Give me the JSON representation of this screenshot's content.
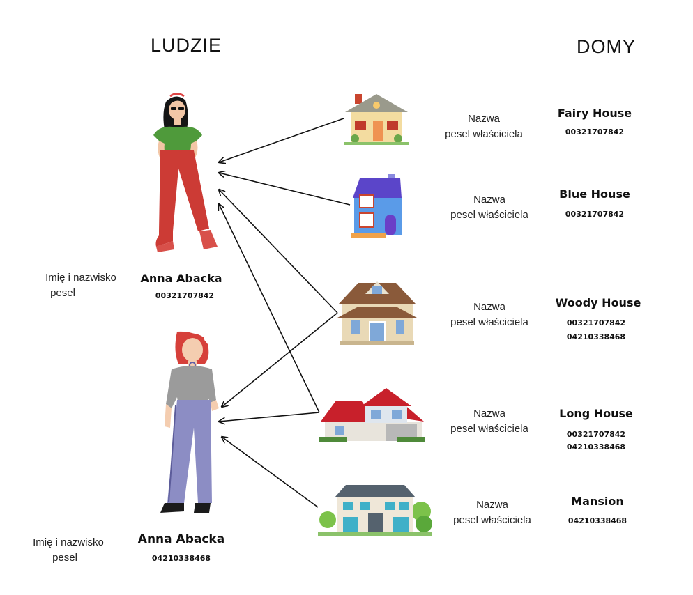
{
  "headings": {
    "people": "LUDZIE",
    "houses": "DOMY"
  },
  "people": [
    {
      "field_label_name": "Imię i nazwisko",
      "field_label_pesel": "pesel",
      "name": "Anna Abacka",
      "pesel": "00321707842"
    },
    {
      "field_label_name": "Imię i nazwisko",
      "field_label_pesel": "pesel",
      "name": "Anna Abacka",
      "pesel": "04210338468"
    }
  ],
  "houses": [
    {
      "field_label_name": "Nazwa",
      "field_label_pesel": "pesel właściciela",
      "name": "Fairy House",
      "pesels": [
        "00321707842"
      ]
    },
    {
      "field_label_name": "Nazwa",
      "field_label_pesel": "pesel właściciela",
      "name": "Blue House",
      "pesels": [
        "00321707842"
      ]
    },
    {
      "field_label_name": "Nazwa",
      "field_label_pesel": "pesel właściciela",
      "name": "Woody House",
      "pesels": [
        "00321707842",
        "04210338468"
      ]
    },
    {
      "field_label_name": "Nazwa",
      "field_label_pesel": "pesel właściciela",
      "name": "Long House",
      "pesels": [
        "00321707842",
        "04210338468"
      ]
    },
    {
      "field_label_name": "Nazwa",
      "field_label_pesel": "pesel właściciela",
      "name": "Mansion",
      "pesels": [
        "04210338468"
      ]
    }
  ]
}
